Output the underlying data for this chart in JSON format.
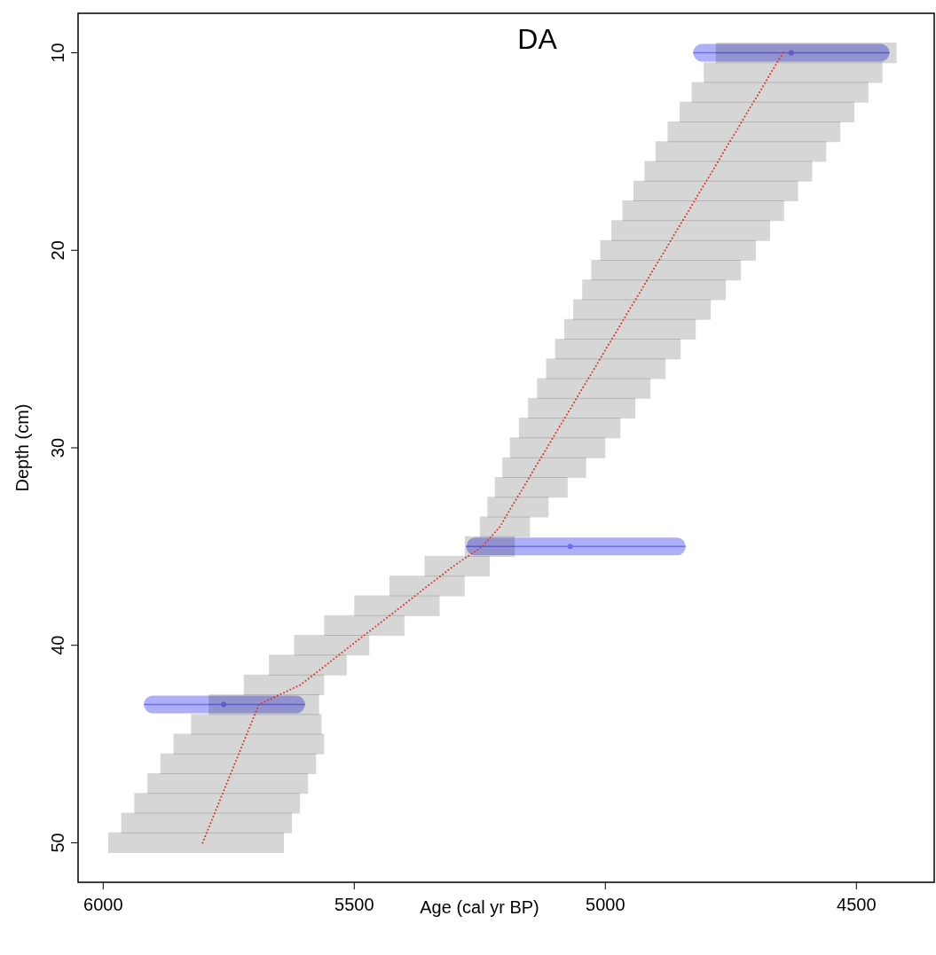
{
  "chart_data": {
    "type": "line",
    "title": "DA",
    "xlabel": "Age (cal yr BP)",
    "ylabel": "Depth (cm)",
    "xlim": [
      6050,
      4345
    ],
    "ylim": [
      52,
      8
    ],
    "xticks": [
      6000,
      5500,
      5000,
      4500
    ],
    "yticks": [
      10,
      20,
      30,
      40,
      50
    ],
    "grid": false,
    "series": [
      {
        "color": "#d9372b",
        "line_style": "dotted",
        "marker": "none",
        "x": [
          5802,
          5786,
          5770,
          5754,
          5738,
          5722,
          5706,
          5690,
          5607,
          5556,
          5506,
          5455,
          5404,
          5354,
          5303,
          5245,
          5210,
          5187,
          5163,
          5140,
          5116,
          5093,
          5069,
          5046,
          5022,
          4999,
          4975,
          4952,
          4928,
          4905,
          4881,
          4858,
          4834,
          4811,
          4787,
          4764,
          4740,
          4717,
          4693,
          4670,
          4646
        ],
        "values": [
          50,
          49,
          48,
          47,
          46,
          45,
          44,
          43,
          42,
          41,
          40,
          39,
          38,
          37,
          36,
          35,
          34,
          33,
          32,
          31,
          30,
          29,
          28,
          27,
          26,
          25,
          24,
          23,
          22,
          21,
          20,
          19,
          18,
          17,
          16,
          15,
          14,
          13,
          12,
          11,
          10
        ],
        "xerrors": [
          [
            5990,
            5640
          ],
          [
            5964,
            5624
          ],
          [
            5938,
            5608
          ],
          [
            5912,
            5592
          ],
          [
            5886,
            5576
          ],
          [
            5860,
            5560
          ],
          [
            5825,
            5565
          ],
          [
            5790,
            5570
          ],
          [
            5720,
            5560
          ],
          [
            5670,
            5515
          ],
          [
            5620,
            5470
          ],
          [
            5560,
            5400
          ],
          [
            5500,
            5330
          ],
          [
            5430,
            5280
          ],
          [
            5360,
            5230
          ],
          [
            5280,
            5180
          ],
          [
            5250,
            5150
          ],
          [
            5235,
            5113
          ],
          [
            5220,
            5075
          ],
          [
            5205,
            5038
          ],
          [
            5190,
            5000
          ],
          [
            5172,
            4970
          ],
          [
            5154,
            4940
          ],
          [
            5136,
            4910
          ],
          [
            5118,
            4880
          ],
          [
            5100,
            4850
          ],
          [
            5082,
            4820
          ],
          [
            5064,
            4790
          ],
          [
            5046,
            4760
          ],
          [
            5028,
            4730
          ],
          [
            5010,
            4700
          ],
          [
            4988,
            4672
          ],
          [
            4966,
            4644
          ],
          [
            4944,
            4616
          ],
          [
            4922,
            4588
          ],
          [
            4900,
            4560
          ],
          [
            4876,
            4532
          ],
          [
            4852,
            4504
          ],
          [
            4828,
            4476
          ],
          [
            4804,
            4448
          ],
          [
            4780,
            4420
          ]
        ]
      },
      {
        "type": "scatter",
        "color": "#6e6ef0",
        "marker": "circle",
        "x": [
          4630,
          5070,
          5760
        ],
        "values": [
          10,
          35,
          43
        ],
        "xerrors": [
          [
            4825,
            4434
          ],
          [
            5277,
            4840
          ],
          [
            5919,
            5598
          ]
        ]
      }
    ]
  }
}
